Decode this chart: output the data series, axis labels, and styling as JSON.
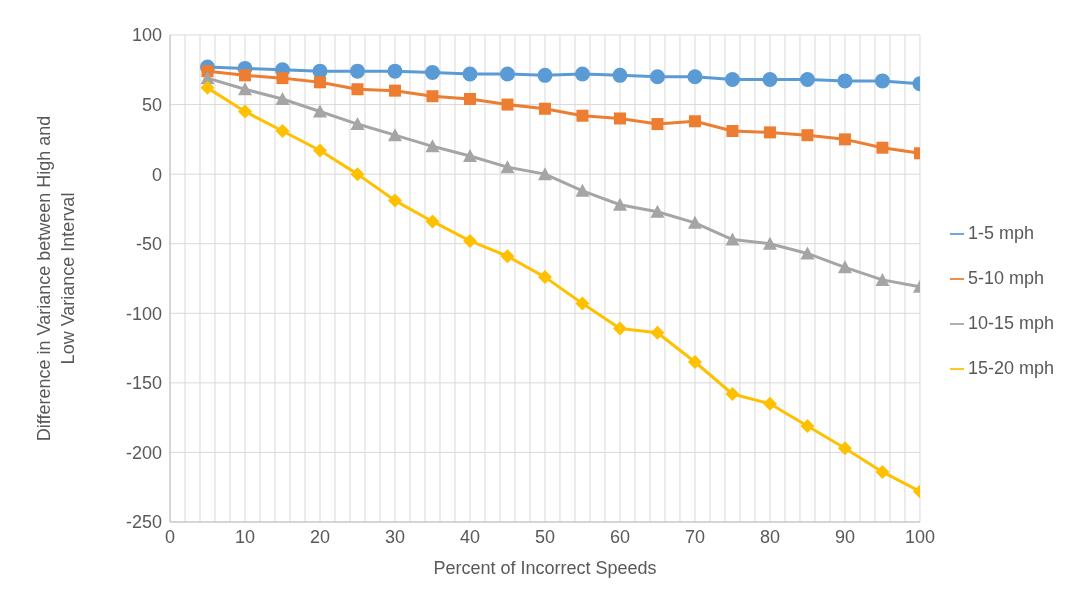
{
  "chart_data": {
    "type": "line",
    "xlabel": "Percent of Incorrect Speeds",
    "ylabel": "Difference in Variance between High and Low Variance Interval",
    "x": [
      5,
      10,
      15,
      20,
      25,
      30,
      35,
      40,
      45,
      50,
      55,
      60,
      65,
      70,
      75,
      80,
      85,
      90,
      95,
      100
    ],
    "series": [
      {
        "name": "1-5 mph",
        "color": "#5b9bd5",
        "marker": "circle",
        "values": [
          77,
          76,
          75,
          74,
          74,
          74,
          73,
          72,
          72,
          71,
          72,
          71,
          70,
          70,
          68,
          68,
          68,
          67,
          67,
          65
        ]
      },
      {
        "name": "5-10 mph",
        "color": "#ed7d31",
        "marker": "square",
        "values": [
          74,
          71,
          69,
          66,
          61,
          60,
          56,
          54,
          50,
          47,
          42,
          40,
          36,
          38,
          31,
          30,
          28,
          25,
          19,
          15
        ]
      },
      {
        "name": "10-15 mph",
        "color": "#a5a5a5",
        "marker": "triangle",
        "values": [
          69,
          61,
          54,
          45,
          36,
          28,
          20,
          13,
          5,
          0,
          -12,
          -22,
          -27,
          -35,
          -47,
          -50,
          -57,
          -67,
          -76,
          -81
        ]
      },
      {
        "name": "15-20 mph",
        "color": "#ffc000",
        "marker": "diamond",
        "values": [
          62,
          45,
          31,
          17,
          0,
          -19,
          -34,
          -48,
          -59,
          -74,
          -93,
          -111,
          -114,
          -135,
          -158,
          -165,
          -181,
          -197,
          -214,
          -228
        ]
      }
    ],
    "xlim": [
      0,
      100
    ],
    "xticks": [
      0,
      {
        "value": 2,
        "label": null
      },
      {
        "value": 4,
        "label": null
      },
      {
        "value": 6,
        "label": null
      },
      {
        "value": 8,
        "label": null
      },
      10,
      {
        "value": 12,
        "label": null
      },
      {
        "value": 14,
        "label": null
      },
      {
        "value": 16,
        "label": null
      },
      {
        "value": 18,
        "label": null
      },
      20,
      {
        "value": 22,
        "label": null
      },
      {
        "value": 24,
        "label": null
      },
      {
        "value": 26,
        "label": null
      },
      {
        "value": 28,
        "label": null
      },
      30,
      {
        "value": 32,
        "label": null
      },
      {
        "value": 34,
        "label": null
      },
      {
        "value": 36,
        "label": null
      },
      {
        "value": 38,
        "label": null
      },
      40,
      {
        "value": 42,
        "label": null
      },
      {
        "value": 44,
        "label": null
      },
      {
        "value": 46,
        "label": null
      },
      {
        "value": 48,
        "label": null
      },
      50,
      {
        "value": 52,
        "label": null
      },
      {
        "value": 54,
        "label": null
      },
      {
        "value": 56,
        "label": null
      },
      {
        "value": 58,
        "label": null
      },
      60,
      {
        "value": 62,
        "label": null
      },
      {
        "value": 64,
        "label": null
      },
      {
        "value": 66,
        "label": null
      },
      {
        "value": 68,
        "label": null
      },
      70,
      {
        "value": 72,
        "label": null
      },
      {
        "value": 74,
        "label": null
      },
      {
        "value": 76,
        "label": null
      },
      {
        "value": 78,
        "label": null
      },
      80,
      {
        "value": 82,
        "label": null
      },
      {
        "value": 84,
        "label": null
      },
      {
        "value": 86,
        "label": null
      },
      {
        "value": 88,
        "label": null
      },
      90,
      {
        "value": 92,
        "label": null
      },
      {
        "value": 94,
        "label": null
      },
      {
        "value": 96,
        "label": null
      },
      {
        "value": 98,
        "label": null
      },
      100
    ],
    "ylim": [
      -250,
      100
    ],
    "yticks": [
      -250,
      -200,
      -150,
      -100,
      -50,
      0,
      50,
      100
    ],
    "grid": true,
    "legend": "right",
    "line_style": "solid"
  }
}
